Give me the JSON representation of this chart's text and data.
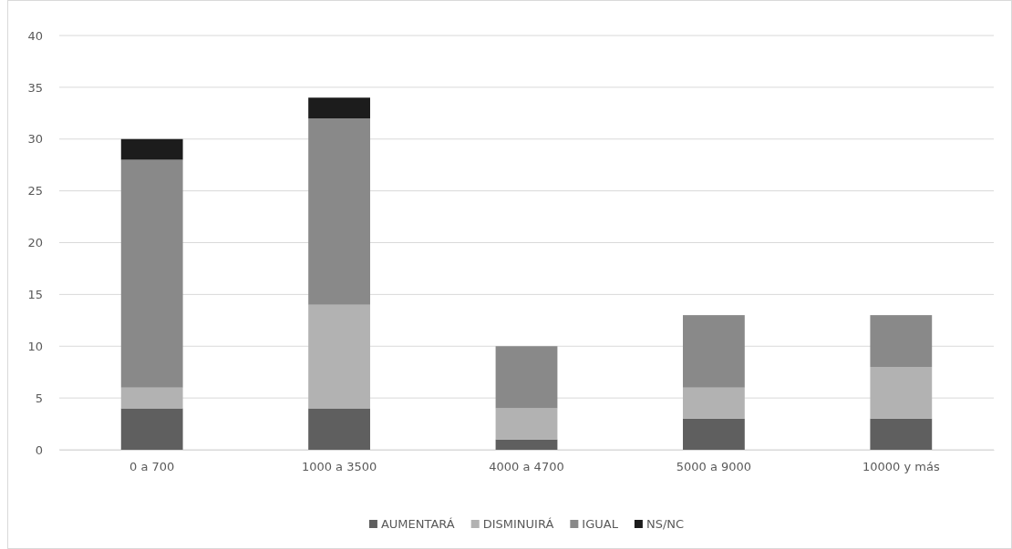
{
  "chart_data": {
    "type": "bar",
    "stacked": true,
    "categories": [
      "0 a 700",
      "1000 a 3500",
      "4000 a 4700",
      "5000 a 9000",
      "10000 y más"
    ],
    "series": [
      {
        "name": "AUMENTARÁ",
        "color": "#5f5f5f",
        "values": [
          4,
          4,
          1,
          3,
          3
        ]
      },
      {
        "name": "DISMINUIRÁ",
        "color": "#b2b2b2",
        "values": [
          2,
          10,
          3,
          3,
          5
        ]
      },
      {
        "name": "IGUAL",
        "color": "#898989",
        "values": [
          22,
          18,
          6,
          7,
          5
        ]
      },
      {
        "name": "NS/NC",
        "color": "#1c1c1c",
        "values": [
          2,
          2,
          0,
          0,
          0
        ]
      }
    ],
    "ylim": [
      0,
      40
    ],
    "yticks": [
      0,
      5,
      10,
      15,
      20,
      25,
      30,
      35,
      40
    ],
    "grid": "y",
    "legend": "bottom"
  }
}
